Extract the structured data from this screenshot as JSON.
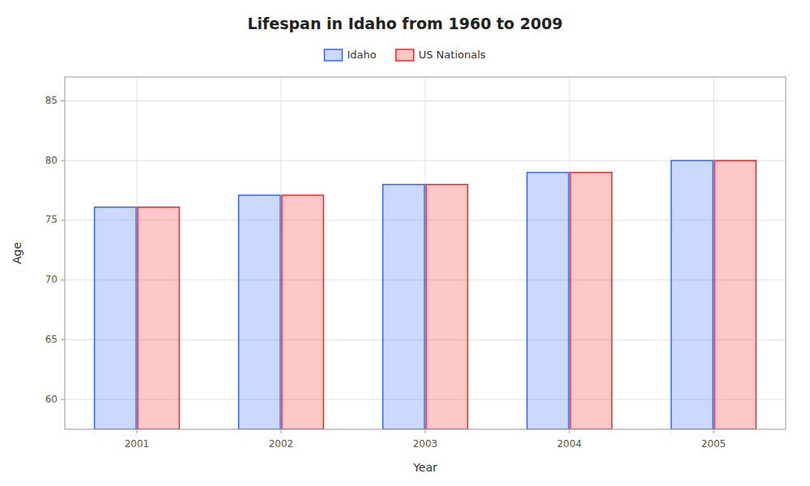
{
  "chart_data": {
    "type": "bar",
    "title": "Lifespan in Idaho from 1960 to 2009",
    "x_label": "Year",
    "y_label": "Age",
    "categories": [
      "2001",
      "2002",
      "2003",
      "2004",
      "2005"
    ],
    "series": [
      {
        "name": "Idaho",
        "color": "#3366ff",
        "values": [
          76.1,
          77.1,
          78.0,
          79.0,
          80.0
        ]
      },
      {
        "name": "US Nationals",
        "color": "#ff2222",
        "values": [
          76.1,
          77.1,
          78.0,
          79.0,
          80.0
        ]
      }
    ],
    "ylim": [
      57.5,
      87
    ],
    "yticks": [
      60,
      65,
      70,
      75,
      80,
      85
    ],
    "grid": true,
    "legend": "top"
  }
}
